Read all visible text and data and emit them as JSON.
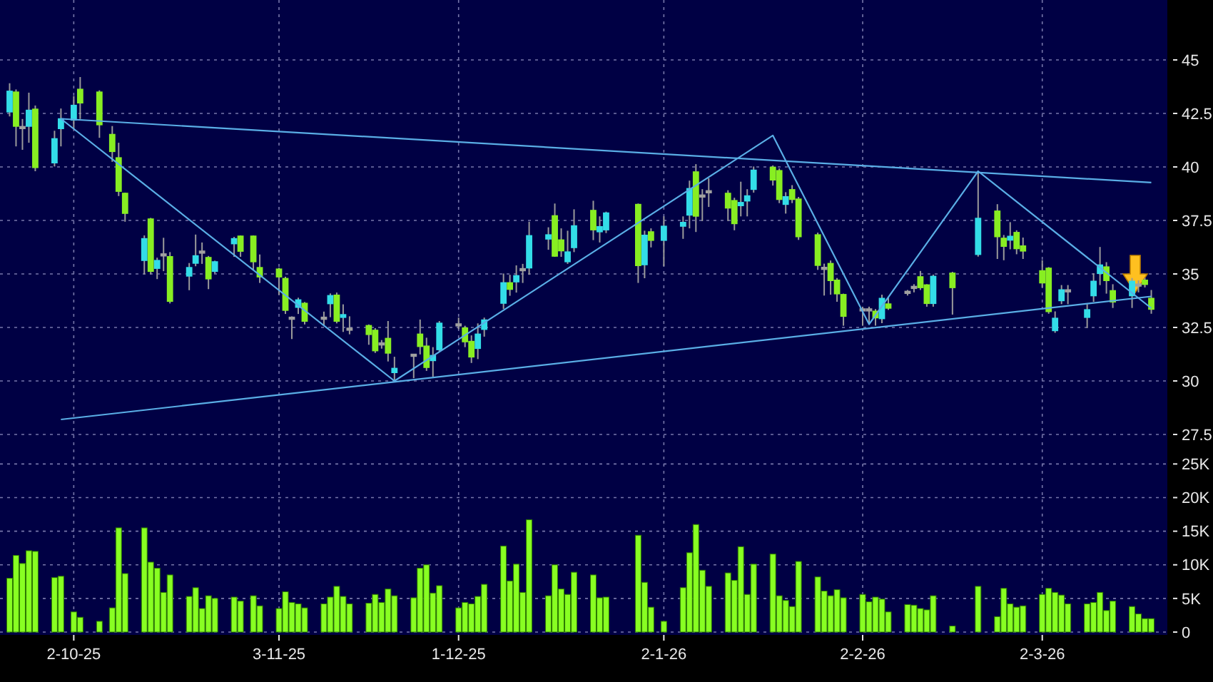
{
  "chart_data": [
    {
      "type": "candlestick",
      "x": [
        "2025-09-22",
        "2025-09-23",
        "2025-09-24",
        "2025-09-25",
        "2025-09-26",
        "2025-09-29",
        "2025-09-30",
        "2025-10-02",
        "2025-10-03",
        "2025-10-06",
        "2025-10-08",
        "2025-10-09",
        "2025-10-10",
        "2025-10-13",
        "2025-10-14",
        "2025-10-15",
        "2025-10-16",
        "2025-10-17",
        "2025-10-20",
        "2025-10-21",
        "2025-10-22",
        "2025-10-23",
        "2025-10-24",
        "2025-10-27",
        "2025-10-28",
        "2025-10-30",
        "2025-10-31",
        "2025-11-03",
        "2025-11-04",
        "2025-11-05",
        "2025-11-06",
        "2025-11-07",
        "2025-11-10",
        "2025-11-11",
        "2025-11-12",
        "2025-11-13",
        "2025-11-14",
        "2025-11-17",
        "2025-11-18",
        "2025-11-19",
        "2025-11-20",
        "2025-11-21",
        "2025-11-24",
        "2025-11-25",
        "2025-11-26",
        "2025-11-27",
        "2025-11-28",
        "2025-12-01",
        "2025-12-02",
        "2025-12-03",
        "2025-12-04",
        "2025-12-05",
        "2025-12-08",
        "2025-12-09",
        "2025-12-10",
        "2025-12-11",
        "2025-12-12",
        "2025-12-15",
        "2025-12-16",
        "2025-12-17",
        "2025-12-18",
        "2025-12-19",
        "2025-12-22",
        "2025-12-23",
        "2025-12-24",
        "2025-12-29",
        "2025-12-30",
        "2025-12-31",
        "2026-01-02",
        "2026-01-05",
        "2026-01-06",
        "2026-01-07",
        "2026-01-08",
        "2026-01-09",
        "2026-01-12",
        "2026-01-13",
        "2026-01-14",
        "2026-01-15",
        "2026-01-16",
        "2026-01-19",
        "2026-01-20",
        "2026-01-21",
        "2026-01-22",
        "2026-01-23",
        "2026-01-26",
        "2026-01-27",
        "2026-01-28",
        "2026-01-29",
        "2026-01-30",
        "2026-02-02",
        "2026-02-03",
        "2026-02-04",
        "2026-02-05",
        "2026-02-06",
        "2026-02-09",
        "2026-02-10",
        "2026-02-11",
        "2026-02-12",
        "2026-02-13",
        "2026-02-16",
        "2026-02-20",
        "2026-02-23",
        "2026-02-24",
        "2026-02-25",
        "2026-02-26",
        "2026-02-27",
        "2026-03-02",
        "2026-03-03",
        "2026-03-04",
        "2026-03-05",
        "2026-03-06",
        "2026-03-09",
        "2026-03-10",
        "2026-03-11",
        "2026-03-12",
        "2026-03-13",
        "2026-03-16",
        "2026-03-17",
        "2026-03-18",
        "2026-03-19"
      ],
      "ohlc": [
        [
          42.58,
          43.91,
          42.36,
          43.53
        ],
        [
          43.49,
          43.62,
          40.96,
          41.91
        ],
        [
          41.84,
          42.24,
          40.8,
          41.84
        ],
        [
          41.91,
          43.47,
          41.13,
          42.64
        ],
        [
          42.69,
          42.87,
          39.8,
          39.98
        ],
        [
          40.2,
          41.69,
          40.02,
          41.31
        ],
        [
          41.8,
          42.73,
          40.96,
          42.24
        ],
        [
          42.2,
          43.31,
          41.76,
          42.87
        ],
        [
          43.62,
          44.2,
          42.24,
          43.0
        ],
        [
          43.49,
          43.58,
          41.36,
          41.98
        ],
        [
          41.51,
          41.91,
          40.24,
          40.73
        ],
        [
          40.42,
          41.13,
          38.64,
          38.87
        ],
        [
          38.76,
          38.8,
          37.44,
          37.84
        ],
        [
          35.64,
          36.8,
          34.98,
          36.64
        ],
        [
          37.56,
          37.62,
          34.98,
          35.13
        ],
        [
          35.27,
          35.76,
          34.76,
          35.62
        ],
        [
          35.89,
          36.69,
          35.13,
          35.89
        ],
        [
          35.8,
          36.02,
          33.62,
          33.73
        ],
        [
          34.91,
          35.51,
          34.24,
          35.29
        ],
        [
          35.51,
          36.84,
          35.36,
          35.84
        ],
        [
          36.02,
          36.47,
          35.47,
          36.02
        ],
        [
          35.76,
          35.84,
          34.29,
          34.78
        ],
        [
          35.13,
          35.62,
          35.02,
          35.56
        ],
        [
          36.42,
          36.73,
          35.8,
          36.64
        ],
        [
          36.76,
          36.8,
          35.8,
          36.07
        ],
        [
          36.76,
          36.8,
          35.18,
          35.58
        ],
        [
          35.29,
          35.91,
          34.58,
          34.87
        ],
        [
          35.22,
          35.29,
          34.02,
          34.87
        ],
        [
          34.78,
          34.87,
          33.13,
          33.31
        ],
        [
          32.93,
          33.02,
          31.96,
          32.93
        ],
        [
          33.45,
          33.89,
          33.13,
          33.78
        ],
        [
          33.62,
          33.69,
          32.64,
          32.8
        ],
        [
          32.93,
          33.24,
          32.58,
          32.93
        ],
        [
          33.62,
          34.09,
          32.98,
          33.98
        ],
        [
          34.0,
          34.13,
          32.69,
          32.8
        ],
        [
          32.98,
          33.58,
          32.29,
          33.09
        ],
        [
          32.42,
          33.02,
          32.18,
          32.42
        ],
        [
          32.58,
          32.64,
          31.69,
          32.18
        ],
        [
          32.36,
          32.47,
          31.31,
          31.42
        ],
        [
          31.73,
          31.91,
          31.51,
          31.73
        ],
        [
          31.98,
          32.8,
          30.91,
          31.31
        ],
        [
          30.4,
          31.13,
          30.02,
          30.58
        ],
        [
          31.2,
          31.2,
          30.13,
          31.2
        ],
        [
          32.18,
          32.87,
          31.24,
          31.62
        ],
        [
          31.62,
          32.02,
          30.47,
          30.64
        ],
        [
          30.96,
          31.58,
          30.2,
          31.18
        ],
        [
          31.47,
          32.8,
          31.36,
          32.69
        ],
        [
          32.62,
          32.96,
          32.42,
          32.62
        ],
        [
          32.47,
          32.58,
          31.58,
          31.84
        ],
        [
          31.84,
          32.13,
          30.84,
          31.13
        ],
        [
          31.53,
          32.69,
          31.02,
          32.18
        ],
        [
          32.42,
          32.96,
          32.07,
          32.84
        ],
        [
          33.64,
          35.02,
          33.36,
          34.58
        ],
        [
          34.58,
          34.96,
          33.98,
          34.29
        ],
        [
          34.64,
          35.4,
          34.13,
          34.91
        ],
        [
          35.2,
          35.47,
          34.58,
          35.2
        ],
        [
          35.29,
          37.44,
          34.96,
          36.78
        ],
        [
          36.64,
          37.18,
          36.13,
          36.82
        ],
        [
          37.71,
          38.29,
          35.8,
          35.84
        ],
        [
          36.58,
          37.13,
          35.8,
          36.09
        ],
        [
          35.58,
          37.02,
          35.47,
          36.02
        ],
        [
          36.24,
          38.02,
          36.02,
          37.24
        ],
        [
          37.96,
          38.42,
          36.58,
          37.07
        ],
        [
          36.98,
          37.69,
          36.47,
          37.2
        ],
        [
          37.07,
          37.91,
          36.91,
          37.84
        ],
        [
          38.24,
          38.29,
          34.58,
          35.4
        ],
        [
          35.44,
          37.02,
          34.8,
          36.8
        ],
        [
          36.96,
          37.13,
          36.24,
          36.58
        ],
        [
          36.58,
          37.69,
          35.36,
          37.22
        ],
        [
          37.24,
          37.69,
          36.64,
          37.4
        ],
        [
          37.76,
          39.36,
          37.13,
          38.98
        ],
        [
          39.76,
          40.13,
          36.96,
          37.71
        ],
        [
          38.64,
          38.96,
          37.47,
          38.64
        ],
        [
          38.84,
          39.47,
          38.13,
          38.84
        ],
        [
          38.76,
          38.91,
          37.47,
          38.09
        ],
        [
          38.42,
          38.56,
          37.04,
          37.36
        ],
        [
          38.2,
          39.31,
          37.69,
          38.33
        ],
        [
          38.42,
          38.96,
          37.69,
          38.64
        ],
        [
          38.96,
          40.02,
          38.8,
          39.84
        ],
        [
          39.98,
          40.07,
          39.13,
          39.4
        ],
        [
          39.82,
          39.93,
          38.31,
          38.49
        ],
        [
          38.26,
          38.82,
          37.82,
          38.6
        ],
        [
          38.93,
          39.15,
          38.31,
          38.49
        ],
        [
          38.49,
          38.6,
          36.59,
          36.75
        ],
        [
          36.82,
          36.93,
          35.19,
          35.41
        ],
        [
          35.26,
          35.48,
          33.99,
          35.26
        ],
        [
          35.48,
          35.63,
          34.03,
          34.7
        ],
        [
          34.7,
          34.81,
          33.7,
          34.08
        ],
        [
          34.03,
          34.08,
          32.58,
          33.03
        ],
        [
          33.32,
          33.47,
          32.58,
          33.32
        ],
        [
          33.32,
          33.47,
          32.65,
          33.32
        ],
        [
          33.25,
          33.36,
          32.58,
          32.96
        ],
        [
          32.92,
          34.03,
          32.7,
          33.85
        ],
        [
          33.59,
          33.92,
          33.32,
          33.41
        ],
        [
          34.14,
          34.25,
          33.99,
          34.14
        ],
        [
          34.37,
          34.52,
          34.14,
          34.37
        ],
        [
          34.86,
          35.14,
          34.25,
          34.37
        ],
        [
          34.48,
          34.52,
          33.47,
          33.63
        ],
        [
          33.63,
          34.97,
          33.47,
          34.88
        ],
        [
          35.03,
          35.1,
          33.1,
          34.37
        ],
        [
          35.92,
          39.78,
          35.81,
          37.59
        ],
        [
          37.93,
          38.26,
          35.7,
          36.75
        ],
        [
          36.66,
          36.82,
          35.64,
          36.3
        ],
        [
          36.59,
          37.42,
          36.15,
          36.75
        ],
        [
          36.93,
          37.04,
          35.92,
          36.19
        ],
        [
          36.3,
          36.7,
          35.7,
          36.08
        ],
        [
          35.14,
          35.64,
          34.37,
          34.59
        ],
        [
          35.26,
          35.32,
          33.14,
          33.25
        ],
        [
          32.36,
          33.25,
          32.25,
          32.92
        ],
        [
          33.76,
          34.48,
          33.59,
          34.25
        ],
        [
          34.21,
          34.48,
          33.59,
          34.21
        ],
        [
          32.98,
          33.59,
          32.47,
          33.32
        ],
        [
          33.99,
          35.03,
          33.7,
          34.65
        ],
        [
          35.03,
          36.26,
          34.48,
          35.41
        ],
        [
          35.32,
          35.55,
          34.08,
          34.7
        ],
        [
          34.21,
          34.52,
          33.41,
          33.7
        ],
        [
          33.99,
          34.81,
          33.41,
          34.65
        ],
        [
          34.48,
          34.7,
          34.14,
          34.48
        ],
        [
          34.7,
          34.81,
          34.37,
          34.52
        ],
        [
          33.85,
          34.25,
          33.14,
          33.36
        ]
      ],
      "colors": [
        "#33dde8",
        "#88ee22",
        "#a0a0a0",
        "#33dde8",
        "#88ee22",
        "#33dde8",
        "#33dde8",
        "#33dde8",
        "#88ee22",
        "#88ee22",
        "#88ee22",
        "#88ee22",
        "#88ee22",
        "#33dde8",
        "#88ee22",
        "#33dde8",
        "#a0a0a0",
        "#88ee22",
        "#33dde8",
        "#33dde8",
        "#a0a0a0",
        "#88ee22",
        "#33dde8",
        "#33dde8",
        "#88ee22",
        "#88ee22",
        "#88ee22",
        "#88ee22",
        "#88ee22",
        "#a0a0a0",
        "#33dde8",
        "#88ee22",
        "#a0a0a0",
        "#33dde8",
        "#88ee22",
        "#33dde8",
        "#a0a0a0",
        "#88ee22",
        "#88ee22",
        "#a0a0a0",
        "#88ee22",
        "#33dde8",
        "#a0a0a0",
        "#88ee22",
        "#88ee22",
        "#33dde8",
        "#33dde8",
        "#a0a0a0",
        "#88ee22",
        "#88ee22",
        "#33dde8",
        "#33dde8",
        "#33dde8",
        "#88ee22",
        "#33dde8",
        "#a0a0a0",
        "#33dde8",
        "#33dde8",
        "#88ee22",
        "#88ee22",
        "#33dde8",
        "#33dde8",
        "#88ee22",
        "#33dde8",
        "#33dde8",
        "#88ee22",
        "#33dde8",
        "#88ee22",
        "#33dde8",
        "#33dde8",
        "#33dde8",
        "#88ee22",
        "#a0a0a0",
        "#a0a0a0",
        "#88ee22",
        "#88ee22",
        "#33dde8",
        "#33dde8",
        "#33dde8",
        "#88ee22",
        "#88ee22",
        "#33dde8",
        "#88ee22",
        "#88ee22",
        "#88ee22",
        "#a0a0a0",
        "#88ee22",
        "#88ee22",
        "#88ee22",
        "#a0a0a0",
        "#a0a0a0",
        "#88ee22",
        "#33dde8",
        "#88ee22",
        "#a0a0a0",
        "#a0a0a0",
        "#88ee22",
        "#88ee22",
        "#33dde8",
        "#88ee22",
        "#33dde8",
        "#88ee22",
        "#88ee22",
        "#33dde8",
        "#88ee22",
        "#88ee22",
        "#88ee22",
        "#88ee22",
        "#33dde8",
        "#33dde8",
        "#a0a0a0",
        "#33dde8",
        "#33dde8",
        "#33dde8",
        "#88ee22",
        "#88ee22",
        "#33dde8",
        "#a0a0a0",
        "#88ee22",
        "#88ee22"
      ],
      "series": [
        {
          "type": "line",
          "color": "#5aaee6",
          "x": [
            "2025-09-30",
            "2026-03-19"
          ],
          "values": [
            42.25,
            39.27
          ]
        },
        {
          "type": "line",
          "color": "#5aaee6",
          "x": [
            "2025-09-30",
            "2026-03-19"
          ],
          "values": [
            28.2,
            33.95
          ]
        },
        {
          "type": "line",
          "color": "#5aaee6",
          "x": [
            "2025-09-30",
            "2025-11-21",
            "2026-01-19",
            "2026-02-03",
            "2026-02-20",
            "2026-03-19"
          ],
          "values": [
            42.25,
            30.0,
            41.47,
            32.65,
            39.8,
            33.4
          ]
        }
      ],
      "ylim": [
        26.6,
        47.8
      ],
      "yticks": [
        27.5,
        30,
        32.5,
        35,
        37.5,
        40,
        42.5,
        45
      ],
      "xlim": [
        "2025-09-20T12:00",
        "2026-03-21T12:00"
      ],
      "xticks": [
        {
          "value": "2025-10-02",
          "label": null
        },
        {
          "value": "2025-11-03",
          "label": null
        },
        {
          "value": "2025-12-01",
          "label": null
        },
        {
          "value": "2026-01-02",
          "label": null
        },
        {
          "value": "2026-02-02",
          "label": null
        },
        {
          "value": "2026-03-02",
          "label": null
        }
      ],
      "tick_labels": "y",
      "grid": true
    },
    {
      "type": "bar",
      "color": "#88ff22",
      "x": [
        "2025-09-22",
        "2025-09-23",
        "2025-09-24",
        "2025-09-25",
        "2025-09-26",
        "2025-09-29",
        "2025-09-30",
        "2025-10-02",
        "2025-10-03",
        "2025-10-06",
        "2025-10-08",
        "2025-10-09",
        "2025-10-10",
        "2025-10-13",
        "2025-10-14",
        "2025-10-15",
        "2025-10-16",
        "2025-10-17",
        "2025-10-20",
        "2025-10-21",
        "2025-10-22",
        "2025-10-23",
        "2025-10-24",
        "2025-10-27",
        "2025-10-28",
        "2025-10-30",
        "2025-10-31",
        "2025-11-03",
        "2025-11-04",
        "2025-11-05",
        "2025-11-06",
        "2025-11-07",
        "2025-11-10",
        "2025-11-11",
        "2025-11-12",
        "2025-11-13",
        "2025-11-14",
        "2025-11-17",
        "2025-11-18",
        "2025-11-19",
        "2025-11-20",
        "2025-11-21",
        "2025-11-24",
        "2025-11-25",
        "2025-11-26",
        "2025-11-27",
        "2025-11-28",
        "2025-12-01",
        "2025-12-02",
        "2025-12-03",
        "2025-12-04",
        "2025-12-05",
        "2025-12-08",
        "2025-12-09",
        "2025-12-10",
        "2025-12-11",
        "2025-12-12",
        "2025-12-15",
        "2025-12-16",
        "2025-12-17",
        "2025-12-18",
        "2025-12-19",
        "2025-12-22",
        "2025-12-23",
        "2025-12-24",
        "2025-12-29",
        "2025-12-30",
        "2025-12-31",
        "2026-01-02",
        "2026-01-05",
        "2026-01-06",
        "2026-01-07",
        "2026-01-08",
        "2026-01-09",
        "2026-01-12",
        "2026-01-13",
        "2026-01-14",
        "2026-01-15",
        "2026-01-16",
        "2026-01-19",
        "2026-01-20",
        "2026-01-21",
        "2026-01-22",
        "2026-01-23",
        "2026-01-26",
        "2026-01-27",
        "2026-01-28",
        "2026-01-29",
        "2026-01-30",
        "2026-02-02",
        "2026-02-03",
        "2026-02-04",
        "2026-02-05",
        "2026-02-06",
        "2026-02-09",
        "2026-02-10",
        "2026-02-11",
        "2026-02-12",
        "2026-02-13",
        "2026-02-16",
        "2026-02-20",
        "2026-02-23",
        "2026-02-24",
        "2026-02-25",
        "2026-02-26",
        "2026-02-27",
        "2026-03-02",
        "2026-03-03",
        "2026-03-04",
        "2026-03-05",
        "2026-03-06",
        "2026-03-09",
        "2026-03-10",
        "2026-03-11",
        "2026-03-12",
        "2026-03-13",
        "2026-03-16",
        "2026-03-17",
        "2026-03-18",
        "2026-03-19"
      ],
      "values": [
        8.0,
        11.4,
        10.2,
        12.1,
        12.0,
        8.1,
        8.3,
        3.0,
        2.2,
        1.6,
        3.6,
        15.5,
        8.7,
        15.5,
        10.4,
        9.5,
        5.9,
        8.5,
        5.3,
        6.6,
        3.5,
        5.4,
        5.0,
        5.2,
        4.6,
        5.4,
        3.9,
        3.5,
        6.0,
        4.4,
        4.2,
        3.6,
        4.2,
        5.2,
        6.8,
        5.3,
        4.2,
        4.3,
        5.6,
        4.4,
        6.4,
        5.4,
        5.1,
        9.5,
        10.0,
        5.8,
        6.9,
        3.6,
        4.4,
        4.2,
        5.3,
        7.1,
        12.8,
        7.6,
        10.1,
        5.9,
        16.7,
        5.4,
        10.0,
        6.4,
        5.6,
        8.9,
        8.5,
        5.1,
        5.2,
        14.4,
        7.4,
        3.7,
        1.6,
        6.6,
        11.8,
        16.0,
        9.2,
        6.8,
        8.8,
        7.7,
        12.7,
        5.6,
        10.1,
        11.6,
        5.4,
        4.7,
        3.8,
        10.5,
        8.2,
        6.1,
        5.4,
        6.3,
        5.1,
        5.6,
        4.5,
        5.2,
        4.9,
        3.0,
        4.1,
        4.0,
        3.5,
        3.3,
        5.4,
        0.9,
        6.8,
        2.3,
        6.5,
        4.2,
        3.7,
        3.9,
        5.6,
        6.5,
        5.9,
        5.5,
        4.2,
        4.2,
        4.4,
        5.9,
        3.2,
        4.6,
        3.8,
        2.7,
        2.0,
        2.0
      ],
      "xlim": [
        "2025-09-20T12:00",
        "2026-03-21T12:00"
      ],
      "ylim": [
        0,
        26.1
      ],
      "yticks": [
        0,
        {
          "value": 5,
          "label": "5K"
        },
        {
          "value": 10,
          "label": "10K"
        },
        {
          "value": 15,
          "label": "15K"
        },
        {
          "value": 20,
          "label": "20K"
        },
        {
          "value": 25,
          "label": "25K"
        }
      ],
      "xticks": [
        {
          "value": "2025-10-02",
          "label": "2-10-25"
        },
        {
          "value": "2025-11-03",
          "label": "3-11-25"
        },
        {
          "value": "2025-12-01",
          "label": "1-12-25"
        },
        {
          "value": "2026-01-02",
          "label": "2-1-26"
        },
        {
          "value": "2026-02-02",
          "label": "2-2-26"
        },
        {
          "value": "2026-03-02",
          "label": "2-3-26"
        }
      ],
      "grid": true
    }
  ]
}
